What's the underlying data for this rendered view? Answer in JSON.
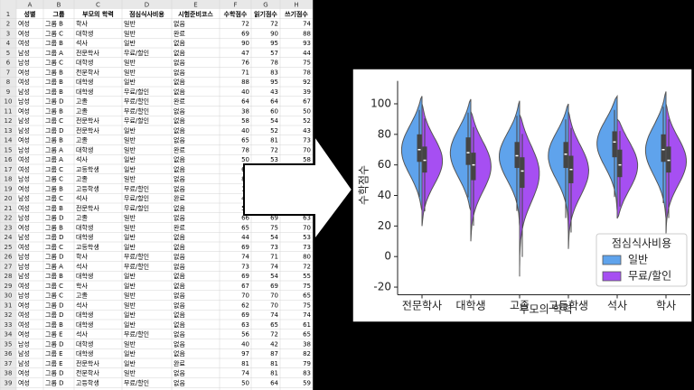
{
  "sheet": {
    "columns": [
      "A",
      "B",
      "C",
      "D",
      "E",
      "F",
      "G",
      "H"
    ],
    "rows": [
      {
        "num": "1",
        "cells": [
          "성별",
          "그룹",
          "부모의 학력",
          "점심식사비용",
          "시험준비코스",
          "수학점수",
          "읽기점수",
          "쓰기점수"
        ]
      },
      {
        "num": "2",
        "cells": [
          "여성",
          "그룹 B",
          "학사",
          "일반",
          "없음",
          72,
          72,
          74
        ]
      },
      {
        "num": "3",
        "cells": [
          "여성",
          "그룹 C",
          "대학생",
          "일반",
          "완료",
          69,
          90,
          88
        ]
      },
      {
        "num": "4",
        "cells": [
          "여성",
          "그룹 B",
          "석사",
          "일반",
          "없음",
          90,
          95,
          93
        ]
      },
      {
        "num": "5",
        "cells": [
          "남성",
          "그룹 A",
          "전문학사",
          "무료/할인",
          "없음",
          47,
          57,
          44
        ]
      },
      {
        "num": "6",
        "cells": [
          "남성",
          "그룹 C",
          "대학생",
          "일반",
          "없음",
          76,
          78,
          75
        ]
      },
      {
        "num": "7",
        "cells": [
          "여성",
          "그룹 B",
          "전문학사",
          "일반",
          "없음",
          71,
          83,
          78
        ]
      },
      {
        "num": "8",
        "cells": [
          "여성",
          "그룹 B",
          "대학생",
          "일반",
          "없음",
          88,
          95,
          92
        ]
      },
      {
        "num": "9",
        "cells": [
          "남성",
          "그룹 B",
          "대학생",
          "무료/할인",
          "없음",
          40,
          43,
          39
        ]
      },
      {
        "num": "10",
        "cells": [
          "남성",
          "그룹 D",
          "고졸",
          "무료/할인",
          "완료",
          64,
          64,
          67
        ]
      },
      {
        "num": "11",
        "cells": [
          "여성",
          "그룹 B",
          "고졸",
          "무료/할인",
          "없음",
          38,
          60,
          50
        ]
      },
      {
        "num": "12",
        "cells": [
          "남성",
          "그룹 C",
          "전문학사",
          "무료/할인",
          "없음",
          58,
          54,
          52
        ]
      },
      {
        "num": "13",
        "cells": [
          "남성",
          "그룹 D",
          "전문학사",
          "일반",
          "없음",
          40,
          52,
          43
        ]
      },
      {
        "num": "14",
        "cells": [
          "여성",
          "그룹 B",
          "고졸",
          "일반",
          "없음",
          65,
          81,
          73
        ]
      },
      {
        "num": "15",
        "cells": [
          "남성",
          "그룹 A",
          "대학생",
          "일반",
          "완료",
          78,
          72,
          70
        ]
      },
      {
        "num": "16",
        "cells": [
          "여성",
          "그룹 A",
          "석사",
          "일반",
          "없음",
          50,
          53,
          58
        ]
      },
      {
        "num": "17",
        "cells": [
          "여성",
          "그룹 C",
          "고등학생",
          "일반",
          "없음",
          69
        ]
      },
      {
        "num": "18",
        "cells": [
          "남성",
          "그룹 C",
          "고졸",
          "일반",
          "없음",
          88
        ]
      },
      {
        "num": "19",
        "cells": [
          "여성",
          "그룹 B",
          "고등학생",
          "무료/할인",
          "없음",
          18
        ]
      },
      {
        "num": "20",
        "cells": [
          "남성",
          "그룹 C",
          "석사",
          "무료/할인",
          "완료",
          46
        ]
      },
      {
        "num": "21",
        "cells": [
          "여성",
          "그룹 B",
          "전문학사",
          "무료/할인",
          "없음",
          54
        ]
      },
      {
        "num": "22",
        "cells": [
          "남성",
          "그룹 D",
          "고졸",
          "일반",
          "없음",
          66,
          69,
          63
        ]
      },
      {
        "num": "23",
        "cells": [
          "여성",
          "그룹 B",
          "대학생",
          "일반",
          "완료",
          65,
          75,
          70
        ]
      },
      {
        "num": "24",
        "cells": [
          "남성",
          "그룹 D",
          "대학생",
          "일반",
          "없음",
          44,
          54,
          53
        ]
      },
      {
        "num": "25",
        "cells": [
          "여성",
          "그룹 C",
          "고등학생",
          "일반",
          "없음",
          69,
          73,
          73
        ]
      },
      {
        "num": "26",
        "cells": [
          "남성",
          "그룹 D",
          "학사",
          "무료/할인",
          "없음",
          74,
          71,
          80
        ]
      },
      {
        "num": "27",
        "cells": [
          "남성",
          "그룹 A",
          "석사",
          "무료/할인",
          "없음",
          73,
          74,
          72
        ]
      },
      {
        "num": "28",
        "cells": [
          "남성",
          "그룹 B",
          "대학생",
          "일반",
          "없음",
          69,
          54,
          55
        ]
      },
      {
        "num": "29",
        "cells": [
          "여성",
          "그룹 C",
          "학사",
          "일반",
          "없음",
          67,
          69,
          75
        ]
      },
      {
        "num": "30",
        "cells": [
          "남성",
          "그룹 C",
          "고졸",
          "일반",
          "없음",
          70,
          70,
          65
        ]
      },
      {
        "num": "31",
        "cells": [
          "여성",
          "그룹 D",
          "석사",
          "일반",
          "없음",
          62,
          70,
          75
        ]
      },
      {
        "num": "32",
        "cells": [
          "여성",
          "그룹 D",
          "대학생",
          "일반",
          "없음",
          69,
          74,
          74
        ]
      },
      {
        "num": "33",
        "cells": [
          "여성",
          "그룹 B",
          "대학생",
          "일반",
          "없음",
          63,
          65,
          61
        ]
      },
      {
        "num": "34",
        "cells": [
          "여성",
          "그룹 E",
          "석사",
          "무료/할인",
          "없음",
          56,
          72,
          65
        ]
      },
      {
        "num": "35",
        "cells": [
          "남성",
          "그룹 D",
          "대학생",
          "일반",
          "없음",
          40,
          42,
          38
        ]
      },
      {
        "num": "36",
        "cells": [
          "남성",
          "그룹 E",
          "대학생",
          "일반",
          "없음",
          97,
          87,
          82
        ]
      },
      {
        "num": "37",
        "cells": [
          "남성",
          "그룹 E",
          "전문학사",
          "일반",
          "완료",
          81,
          81,
          79
        ]
      },
      {
        "num": "38",
        "cells": [
          "여성",
          "그룹 D",
          "전문학사",
          "일반",
          "없음",
          74,
          81,
          83
        ]
      },
      {
        "num": "39",
        "cells": [
          "여성",
          "그룹 D",
          "고등학생",
          "무료/할인",
          "없음",
          50,
          64,
          59
        ]
      }
    ]
  },
  "chart_data": {
    "type": "violin",
    "ylabel": "수학점수",
    "xlabel": "부모의 학력",
    "categories": [
      "전문학사",
      "대학생",
      "고졸",
      "고등학생",
      "석사",
      "학사"
    ],
    "legend_title": "점심식사비용",
    "legend": "lower right",
    "series": [
      {
        "name": "일반",
        "color": "#5fa3ec",
        "stats": [
          [
            30,
            62,
            70,
            80,
            105
          ],
          [
            30,
            60,
            68,
            78,
            103
          ],
          [
            20,
            58,
            66,
            75,
            102
          ],
          [
            15,
            58,
            67,
            75,
            100
          ],
          [
            30,
            65,
            75,
            82,
            105
          ],
          [
            25,
            62,
            70,
            80,
            108
          ]
        ]
      },
      {
        "name": "무료/할인",
        "color": "#a64ff2",
        "stats": [
          [
            20,
            55,
            63,
            72,
            100
          ],
          [
            10,
            50,
            60,
            68,
            95
          ],
          [
            -13,
            45,
            56,
            65,
            93
          ],
          [
            5,
            48,
            57,
            66,
            95
          ],
          [
            25,
            52,
            60,
            70,
            90
          ],
          [
            15,
            55,
            63,
            72,
            100
          ]
        ]
      }
    ],
    "ylim": [
      -25,
      115
    ],
    "yticks": [
      -20,
      0,
      20,
      40,
      60,
      80,
      100
    ]
  }
}
